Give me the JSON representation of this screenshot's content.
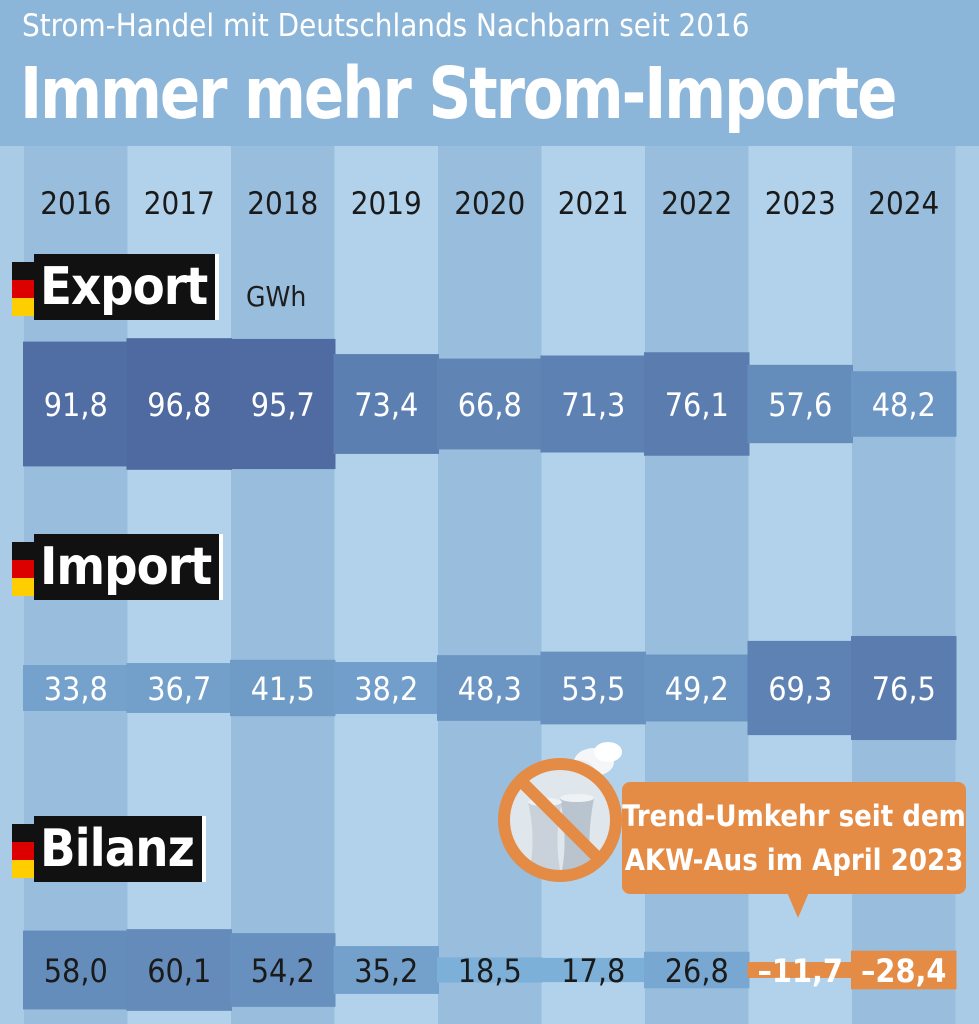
{
  "header": {
    "subtitle": "Strom-Handel mit Deutschlands Nachbarn seit 2016",
    "title": "Immer mehr Strom-Importe"
  },
  "unit": "GWh",
  "callout": {
    "line1": "Trend-Umkehr seit dem",
    "line2": "AKW-Aus im April 2023",
    "icon": "no-nuclear-plant-icon"
  },
  "colors": {
    "background": "#a9cbe6",
    "header": "#8cb6d9",
    "negative": "#e48b45",
    "flag_black": "#111111",
    "flag_red": "#dd0000",
    "flag_gold": "#ffce00"
  },
  "chart_data": {
    "type": "bar",
    "title": "Immer mehr Strom-Importe",
    "subtitle": "Strom-Handel mit Deutschlands Nachbarn seit 2016",
    "ylabel": "GWh",
    "categories": [
      "2016",
      "2017",
      "2018",
      "2019",
      "2020",
      "2021",
      "2022",
      "2023",
      "2024"
    ],
    "series": [
      {
        "name": "Export",
        "values": [
          91.8,
          96.8,
          95.7,
          73.4,
          66.8,
          71.3,
          76.1,
          57.6,
          48.2
        ],
        "labels": [
          "91,8",
          "96,8",
          "95,7",
          "73,4",
          "66,8",
          "71,3",
          "76,1",
          "57,6",
          "48,2"
        ]
      },
      {
        "name": "Import",
        "values": [
          33.8,
          36.7,
          41.5,
          38.2,
          48.3,
          53.5,
          49.2,
          69.3,
          76.5
        ],
        "labels": [
          "33,8",
          "36,7",
          "41,5",
          "38,2",
          "48,3",
          "53,5",
          "49,2",
          "69,3",
          "76,5"
        ]
      },
      {
        "name": "Bilanz",
        "values": [
          58.0,
          60.1,
          54.2,
          35.2,
          18.5,
          17.8,
          26.8,
          -11.7,
          -28.4
        ],
        "labels": [
          "58,0",
          "60,1",
          "54,2",
          "35,2",
          "18,5",
          "17,8",
          "26,8",
          "–11,7",
          "–28,4"
        ]
      }
    ]
  }
}
